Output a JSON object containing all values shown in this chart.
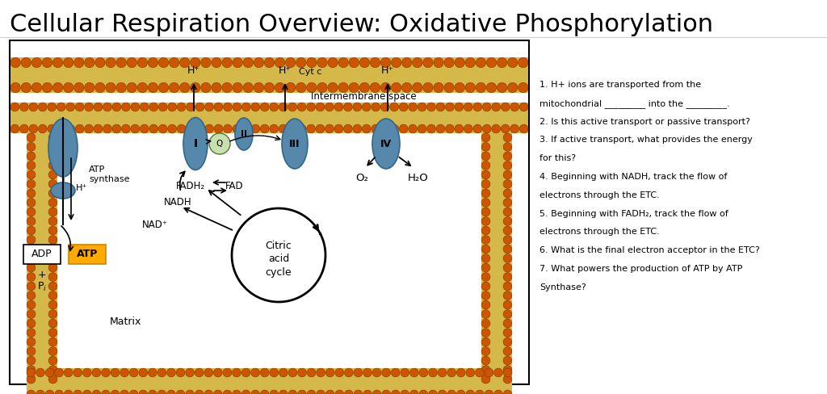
{
  "title": "Cellular Respiration Overview: Oxidative Phosphorylation",
  "title_fontsize": 22,
  "background_color": "#ffffff",
  "protein_color": "#5588aa",
  "protein_edge": "#336688",
  "membrane_bg": "#d4b84a",
  "membrane_head": "#cc5500",
  "membrane_head_edge": "#883300",
  "questions": [
    "1. H+ ions are transported from the",
    "mitochondrial _________ into the _________.",
    "2. Is this active transport or passive transport?",
    "3. If active transport, what provides the energy",
    "for this?",
    "4. Beginning with NADH, track the flow of",
    "electrons through the ETC.",
    "5. Beginning with FADH₂, track the flow of",
    "electrons through the ETC.",
    "6. What is the final electron acceptor in the ETC?",
    "7. What powers the production of ATP by ATP",
    "Synthase?"
  ]
}
